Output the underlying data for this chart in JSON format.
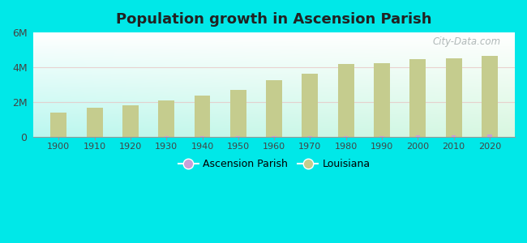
{
  "title": "Population growth in Ascension Parish",
  "years": [
    1900,
    1910,
    1920,
    1930,
    1940,
    1950,
    1960,
    1970,
    1980,
    1990,
    2000,
    2010,
    2020
  ],
  "louisiana": [
    1382000,
    1656000,
    1799000,
    2102000,
    2364000,
    2684000,
    3257000,
    3643000,
    4206000,
    4220000,
    4469000,
    4533000,
    4658000
  ],
  "ascension": [
    10000,
    11000,
    14000,
    18000,
    17000,
    22000,
    27000,
    37000,
    58000,
    58000,
    76000,
    107000,
    126000
  ],
  "louisiana_color": "#c5cc8e",
  "ascension_color": "#c8a0d8",
  "outer_bg": "#00e8e8",
  "ylim": [
    0,
    6000000
  ],
  "yticks": [
    0,
    2000000,
    4000000,
    6000000
  ],
  "ytick_labels": [
    "0",
    "2M",
    "4M",
    "6M"
  ],
  "watermark": "City-Data.com",
  "legend_labels": [
    "Ascension Parish",
    "Louisiana"
  ],
  "la_bar_width": 4.5,
  "ap_bar_width": 1.2
}
